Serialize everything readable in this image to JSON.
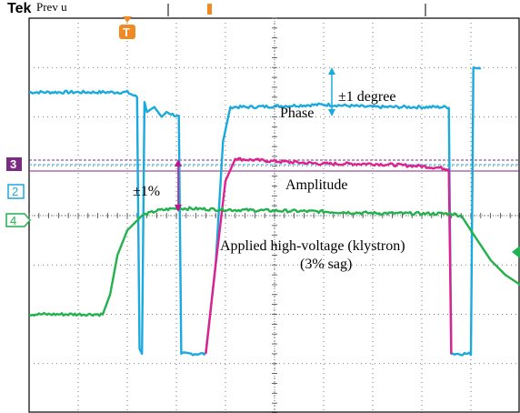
{
  "header": {
    "brand": "Tek",
    "mode": "Prev u"
  },
  "colors": {
    "ch2_phase": "#1aaadd",
    "ch3_amplitude": "#e0208e",
    "ch4_voltage": "#22b14c",
    "ch3_marker": "#7a2c82",
    "trigger": "#f08a24",
    "annotation_arrow": "#c0148a"
  },
  "markers": {
    "ch3": "3",
    "ch2": "2",
    "ch4": "4",
    "trigger": "T"
  },
  "chart_data": {
    "type": "line",
    "title": "",
    "xlabel": "",
    "ylabel": "",
    "grid": true,
    "grid_divisions": {
      "x": 10,
      "y": 8
    },
    "series": [
      {
        "name": "Phase",
        "color_key": "ch2_phase",
        "points": [
          [
            0,
            2.5
          ],
          [
            0.5,
            2.5
          ],
          [
            1.3,
            2.5
          ],
          [
            2,
            2.5
          ],
          [
            2.2,
            2.4
          ],
          [
            2.25,
            -2.7
          ],
          [
            2.3,
            -2.8
          ],
          [
            2.35,
            2.3
          ],
          [
            2.4,
            2.1
          ],
          [
            2.55,
            2.2
          ],
          [
            2.7,
            2.0
          ],
          [
            2.8,
            2.1
          ],
          [
            3.05,
            2.0
          ],
          [
            3.1,
            -2.8
          ],
          [
            3.2,
            -2.8
          ],
          [
            3.6,
            -2.8
          ],
          [
            3.8,
            -1.0
          ],
          [
            3.95,
            1.5
          ],
          [
            4.1,
            2.2
          ],
          [
            4.5,
            2.2
          ],
          [
            6,
            2.25
          ],
          [
            7,
            2.2
          ],
          [
            8,
            2.2
          ],
          [
            8.55,
            2.2
          ],
          [
            8.6,
            -2.8
          ],
          [
            9.0,
            -2.8
          ],
          [
            9.05,
            3.0
          ],
          [
            9.2,
            3.0
          ]
        ]
      },
      {
        "name": "Amplitude",
        "color_key": "ch3_amplitude",
        "points": [
          [
            3.6,
            -2.8
          ],
          [
            3.8,
            -1.0
          ],
          [
            4.0,
            0.7
          ],
          [
            4.2,
            1.15
          ],
          [
            5,
            1.1
          ],
          [
            6,
            1.05
          ],
          [
            7,
            1.05
          ],
          [
            8,
            1.0
          ],
          [
            8.55,
            0.95
          ],
          [
            8.6,
            -2.8
          ]
        ]
      },
      {
        "name": "Applied high-voltage (klystron)",
        "color_key": "ch4_voltage",
        "points": [
          [
            0,
            -2.0
          ],
          [
            1.0,
            -2.0
          ],
          [
            1.5,
            -2.0
          ],
          [
            1.65,
            -1.6
          ],
          [
            1.8,
            -0.8
          ],
          [
            2.0,
            -0.3
          ],
          [
            2.3,
            0
          ],
          [
            2.6,
            0.1
          ],
          [
            3.0,
            0.15
          ],
          [
            4,
            0.12
          ],
          [
            5,
            0.1
          ],
          [
            6,
            0.08
          ],
          [
            7,
            0.05
          ],
          [
            8,
            0.04
          ],
          [
            8.6,
            0.04
          ],
          [
            8.8,
            0
          ],
          [
            9.0,
            -0.3
          ],
          [
            9.4,
            -0.9
          ],
          [
            9.7,
            -1.2
          ],
          [
            10,
            -1.4
          ]
        ]
      }
    ],
    "annotations": {
      "phase_label": "Phase",
      "phase_scale": "±1 degree",
      "amplitude_label": "Amplitude",
      "amplitude_scale": "±1%",
      "voltage_label": "Applied high-voltage (klystron)",
      "voltage_note": "(3% sag)"
    }
  }
}
